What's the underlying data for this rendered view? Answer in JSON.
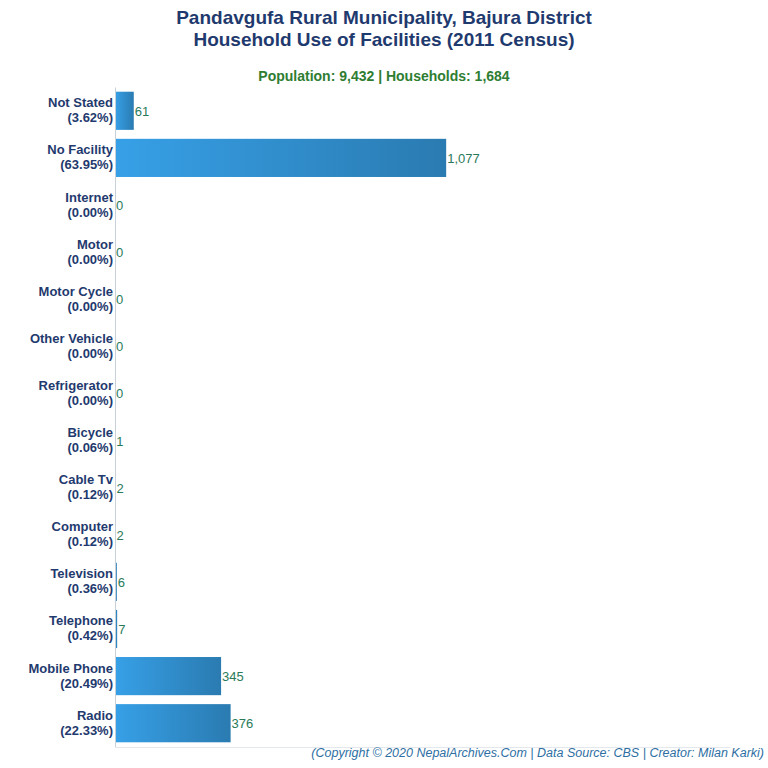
{
  "chart_data": {
    "type": "bar",
    "orientation": "horizontal",
    "title": "Pandavgufa Rural Municipality, Bajura District\nHousehold Use of Facilities (2011 Census)",
    "subtitle": "Population: 9,432 | Households: 1,684",
    "annotations": [
      "(Copyright © 2020 NepalArchives.Com | Data Source: CBS | Creator: Milan Karki)"
    ],
    "categories": [
      "Not Stated\n(3.62%)",
      "No Facility\n(63.95%)",
      "Internet\n(0.00%)",
      "Motor\n(0.00%)",
      "Motor Cycle\n(0.00%)",
      "Other Vehicle\n(0.00%)",
      "Refrigerator\n(0.00%)",
      "Bicycle\n(0.06%)",
      "Cable Tv\n(0.12%)",
      "Computer\n(0.12%)",
      "Television\n(0.36%)",
      "Telephone\n(0.42%)",
      "Mobile Phone\n(20.49%)",
      "Radio\n(22.33%)"
    ],
    "values": [
      61,
      1077,
      0,
      0,
      0,
      0,
      0,
      1,
      2,
      2,
      6,
      7,
      345,
      376
    ],
    "value_labels": [
      "61",
      "1,077",
      "0",
      "0",
      "0",
      "0",
      "0",
      "1",
      "2",
      "2",
      "6",
      "7",
      "345",
      "376"
    ],
    "color": "#3498db",
    "xlim": [
      0,
      2000
    ],
    "xticks": [],
    "grid": false,
    "data_labels": true,
    "tick_labels": "y"
  }
}
